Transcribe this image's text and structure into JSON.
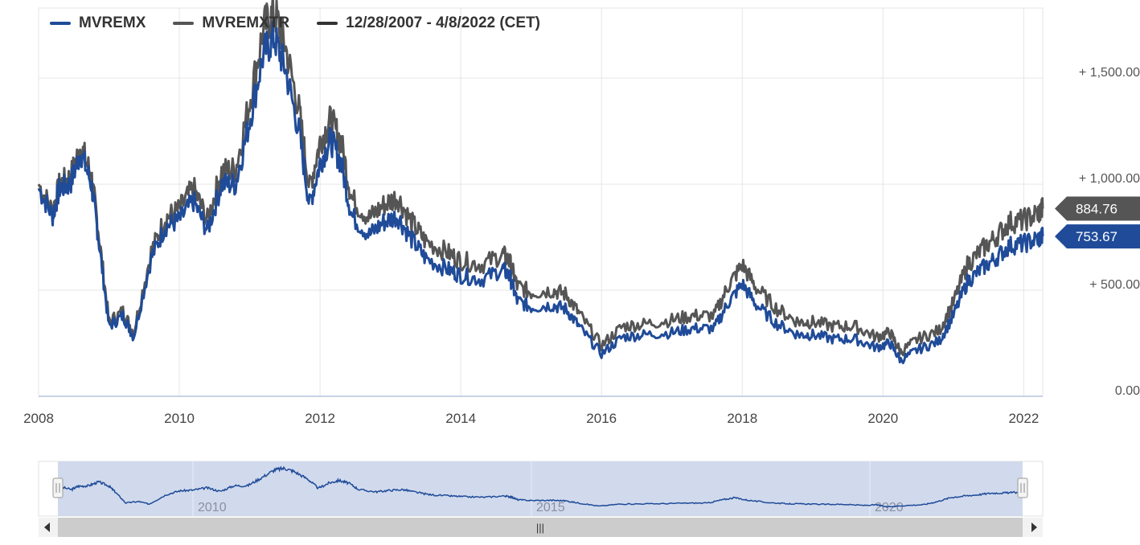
{
  "legend": {
    "series1": "MVREMX",
    "series2": "MVREMXTR",
    "range": "12/28/2007 - 4/8/2022 (CET)"
  },
  "colors": {
    "mvremx": "#1f4b99",
    "mvremxtr": "#555555",
    "range": "#333333",
    "grid": "#e6e6e6",
    "navigator_fill": "#ccd6eb"
  },
  "current_values": {
    "mvremxtr": "884.76",
    "mvremx": "753.67"
  },
  "navigator": {
    "labels": [
      "2010",
      "2015",
      "2020"
    ],
    "handle_glyph": "|||"
  },
  "chart_data": {
    "type": "line",
    "x_ticks": [
      "2008",
      "2010",
      "2012",
      "2014",
      "2016",
      "2018",
      "2020",
      "2022"
    ],
    "y_ticks": [
      "0.00",
      "+ 500.00",
      "+ 1,000.00",
      "+ 1,500.00"
    ],
    "y_tick_values": [
      0,
      500,
      1000,
      1500
    ],
    "ylim": [
      0,
      1830
    ],
    "xlim": [
      2008.0,
      2022.27
    ],
    "grid": true,
    "legend_position": "top-left",
    "x": [
      2008.0,
      2008.2,
      2008.3,
      2008.45,
      2008.6,
      2008.75,
      2008.85,
      2009.0,
      2009.2,
      2009.35,
      2009.6,
      2009.8,
      2010.0,
      2010.2,
      2010.4,
      2010.6,
      2010.8,
      2011.0,
      2011.2,
      2011.35,
      2011.5,
      2011.7,
      2011.85,
      2012.0,
      2012.15,
      2012.3,
      2012.45,
      2012.7,
      2012.9,
      2013.1,
      2013.3,
      2013.5,
      2013.8,
      2014.0,
      2014.3,
      2014.6,
      2014.7,
      2014.8,
      2015.0,
      2015.3,
      2015.5,
      2015.7,
      2016.0,
      2016.3,
      2016.6,
      2017.0,
      2017.3,
      2017.6,
      2017.8,
      2018.0,
      2018.2,
      2018.5,
      2018.8,
      2019.0,
      2019.3,
      2019.6,
      2019.9,
      2020.1,
      2020.25,
      2020.5,
      2020.8,
      2021.0,
      2021.2,
      2021.4,
      2021.6,
      2021.8,
      2022.0,
      2022.2,
      2022.27
    ],
    "series": [
      {
        "name": "MVREMX",
        "values": [
          980,
          850,
          980,
          1000,
          1150,
          1000,
          750,
          330,
          380,
          280,
          650,
          800,
          830,
          920,
          780,
          1000,
          1000,
          1300,
          1620,
          1690,
          1550,
          1250,
          900,
          1100,
          1210,
          1100,
          850,
          760,
          820,
          850,
          740,
          650,
          600,
          570,
          550,
          600,
          560,
          450,
          420,
          430,
          410,
          320,
          200,
          280,
          290,
          300,
          320,
          320,
          440,
          530,
          430,
          340,
          290,
          290,
          270,
          270,
          230,
          250,
          170,
          220,
          260,
          380,
          540,
          600,
          650,
          710,
          720,
          740,
          753.67
        ]
      },
      {
        "name": "MVREMXTR",
        "values": [
          1000,
          870,
          1000,
          1030,
          1180,
          1040,
          780,
          350,
          400,
          300,
          680,
          840,
          880,
          980,
          830,
          1060,
          1070,
          1390,
          1740,
          1810,
          1660,
          1350,
          980,
          1200,
          1300,
          1200,
          930,
          840,
          900,
          940,
          820,
          730,
          680,
          640,
          620,
          670,
          630,
          520,
          490,
          500,
          480,
          380,
          240,
          330,
          340,
          360,
          380,
          380,
          520,
          620,
          510,
          410,
          350,
          350,
          330,
          330,
          280,
          300,
          210,
          270,
          310,
          440,
          620,
          690,
          750,
          820,
          830,
          860,
          884.76
        ]
      }
    ]
  }
}
